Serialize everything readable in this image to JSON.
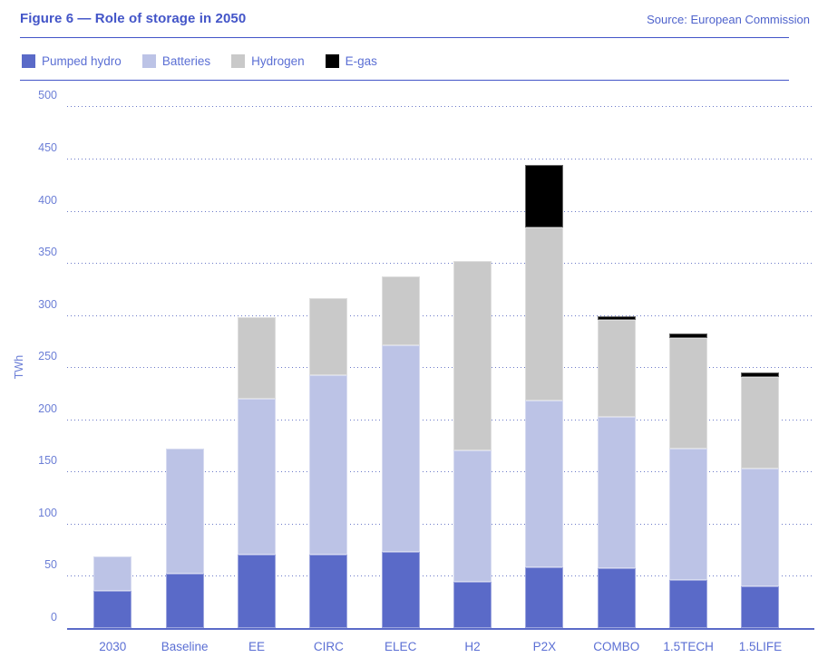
{
  "header": {
    "title": "Figure 6 — Role of storage in 2050",
    "source": "Source: European Commission"
  },
  "colors": {
    "accent": "#4355c8",
    "tick_text": "#6b7ed6",
    "category_text": "#5b6fd4",
    "gridline": "#6b79c8",
    "axis_line": "#5b6bc8"
  },
  "chart_data": {
    "type": "bar",
    "stacked": true,
    "title": "Figure 6 — Role of storage in 2050",
    "source": "European Commission",
    "ylabel": "TWh",
    "xlabel": "",
    "ylim": [
      0,
      500
    ],
    "yticks": [
      0,
      50,
      100,
      150,
      200,
      250,
      300,
      350,
      400,
      450,
      500
    ],
    "grid": "dotted-horizontal",
    "legend_position": "top",
    "categories": [
      "2030",
      "Baseline",
      "EE",
      "CIRC",
      "ELEC",
      "H2",
      "P2X",
      "COMBO",
      "1.5TECH",
      "1.5LIFE"
    ],
    "series": [
      {
        "name": "Pumped hydro",
        "color": "#5a6ac8",
        "values": [
          36,
          52,
          70,
          70,
          73,
          44,
          58,
          57,
          46,
          40
        ]
      },
      {
        "name": "Batteries",
        "color": "#bcc3e6",
        "values": [
          33,
          120,
          150,
          172,
          198,
          126,
          160,
          145,
          126,
          113
        ]
      },
      {
        "name": "Hydrogen",
        "color": "#c9c9c9",
        "values": [
          0,
          0,
          78,
          74,
          66,
          182,
          166,
          93,
          106,
          88
        ]
      },
      {
        "name": "E-gas",
        "color": "#000000",
        "values": [
          0,
          0,
          0,
          0,
          0,
          0,
          60,
          4,
          4,
          4
        ]
      }
    ],
    "totals": [
      69,
      172,
      298,
      316,
      337,
      352,
      444,
      299,
      282,
      245
    ]
  }
}
